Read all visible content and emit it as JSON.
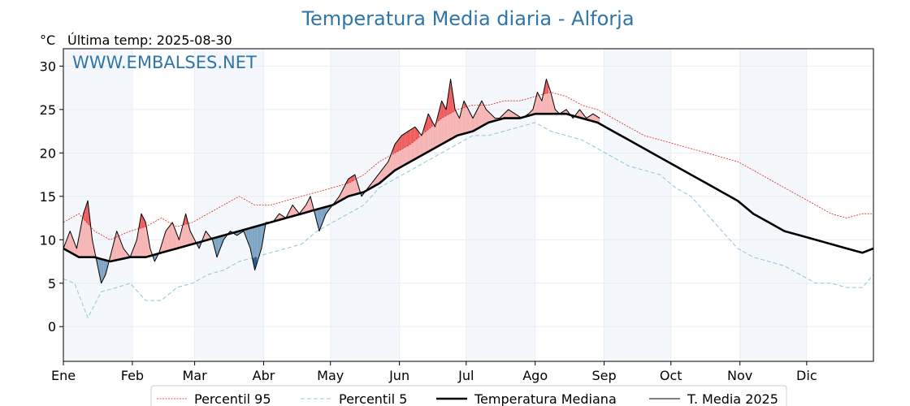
{
  "chart_data": {
    "type": "line",
    "title": "Temperatura Media diaria - Alforja",
    "unit": "°C",
    "last_temp_label": "Última temp: 2025-08-30",
    "watermark": "WWW.EMBALSES.NET",
    "x_ticks": [
      "Ene",
      "Feb",
      "Mar",
      "Abr",
      "May",
      "Jun",
      "Jul",
      "Ago",
      "Sep",
      "Oct",
      "Nov",
      "Dic"
    ],
    "y_ticks": [
      0,
      5,
      10,
      15,
      20,
      25,
      30
    ],
    "ylim": [
      -4,
      32
    ],
    "legend_placement": "bottom",
    "grid": true,
    "series": [
      {
        "name": "Percentil 95",
        "color": "#e02020",
        "points": [
          [
            1,
            12
          ],
          [
            8,
            13
          ],
          [
            15,
            11
          ],
          [
            22,
            10
          ],
          [
            31,
            11
          ],
          [
            38,
            11.5
          ],
          [
            45,
            12.5
          ],
          [
            52,
            11.5
          ],
          [
            59,
            12
          ],
          [
            66,
            13
          ],
          [
            73,
            14
          ],
          [
            80,
            15
          ],
          [
            87,
            14
          ],
          [
            94,
            14
          ],
          [
            101,
            14.5
          ],
          [
            108,
            15
          ],
          [
            115,
            15.5
          ],
          [
            122,
            16
          ],
          [
            129,
            16.5
          ],
          [
            136,
            17.5
          ],
          [
            143,
            19
          ],
          [
            150,
            20
          ],
          [
            157,
            21
          ],
          [
            164,
            22.5
          ],
          [
            171,
            24
          ],
          [
            178,
            25
          ],
          [
            185,
            25.5
          ],
          [
            192,
            25.5
          ],
          [
            199,
            26
          ],
          [
            206,
            26
          ],
          [
            213,
            26.5
          ],
          [
            220,
            27
          ],
          [
            227,
            26.5
          ],
          [
            234,
            25.5
          ],
          [
            241,
            25
          ],
          [
            248,
            24
          ],
          [
            255,
            23
          ],
          [
            262,
            22
          ],
          [
            269,
            21.5
          ],
          [
            276,
            21
          ],
          [
            283,
            20.5
          ],
          [
            290,
            20
          ],
          [
            297,
            19.5
          ],
          [
            304,
            19
          ],
          [
            311,
            18
          ],
          [
            318,
            17
          ],
          [
            325,
            16
          ],
          [
            332,
            15
          ],
          [
            339,
            14
          ],
          [
            346,
            13
          ],
          [
            353,
            12.5
          ],
          [
            360,
            13
          ],
          [
            365,
            13
          ]
        ]
      },
      {
        "name": "Percentil 5",
        "color": "#8cc4dc",
        "points": [
          [
            1,
            5.5
          ],
          [
            6,
            5
          ],
          [
            12,
            1
          ],
          [
            18,
            4
          ],
          [
            25,
            4.5
          ],
          [
            31,
            5
          ],
          [
            38,
            3
          ],
          [
            45,
            3
          ],
          [
            52,
            4.5
          ],
          [
            59,
            5
          ],
          [
            66,
            6
          ],
          [
            73,
            6.5
          ],
          [
            80,
            7.5
          ],
          [
            87,
            8
          ],
          [
            94,
            8.5
          ],
          [
            101,
            9
          ],
          [
            108,
            9.5
          ],
          [
            115,
            11
          ],
          [
            122,
            12
          ],
          [
            129,
            13
          ],
          [
            136,
            14
          ],
          [
            143,
            16
          ],
          [
            150,
            17
          ],
          [
            157,
            18
          ],
          [
            164,
            19
          ],
          [
            171,
            20
          ],
          [
            178,
            21
          ],
          [
            185,
            22
          ],
          [
            192,
            22
          ],
          [
            199,
            22.5
          ],
          [
            206,
            23
          ],
          [
            213,
            23.5
          ],
          [
            220,
            22.5
          ],
          [
            227,
            22
          ],
          [
            234,
            21.5
          ],
          [
            241,
            20.5
          ],
          [
            248,
            19.5
          ],
          [
            255,
            18.5
          ],
          [
            262,
            18
          ],
          [
            269,
            17.5
          ],
          [
            276,
            16
          ],
          [
            283,
            15
          ],
          [
            290,
            13
          ],
          [
            297,
            11
          ],
          [
            304,
            9
          ],
          [
            311,
            8
          ],
          [
            318,
            7.5
          ],
          [
            325,
            7
          ],
          [
            332,
            6
          ],
          [
            339,
            5
          ],
          [
            346,
            5
          ],
          [
            353,
            4.5
          ],
          [
            360,
            4.5
          ],
          [
            365,
            6
          ]
        ]
      },
      {
        "name": "Temperatura Mediana",
        "color": "#000000",
        "points": [
          [
            1,
            9
          ],
          [
            8,
            8
          ],
          [
            15,
            8
          ],
          [
            22,
            7.5
          ],
          [
            31,
            8
          ],
          [
            38,
            8
          ],
          [
            45,
            8.5
          ],
          [
            52,
            9
          ],
          [
            59,
            9.5
          ],
          [
            66,
            10
          ],
          [
            73,
            10.5
          ],
          [
            80,
            11
          ],
          [
            87,
            11.5
          ],
          [
            94,
            12
          ],
          [
            101,
            12.5
          ],
          [
            108,
            13
          ],
          [
            115,
            13.5
          ],
          [
            122,
            14
          ],
          [
            129,
            15
          ],
          [
            136,
            15.5
          ],
          [
            143,
            16.5
          ],
          [
            150,
            18
          ],
          [
            157,
            19
          ],
          [
            164,
            20
          ],
          [
            171,
            21
          ],
          [
            178,
            22
          ],
          [
            185,
            22.5
          ],
          [
            192,
            23.5
          ],
          [
            199,
            24
          ],
          [
            206,
            24
          ],
          [
            213,
            24.5
          ],
          [
            220,
            24.5
          ],
          [
            227,
            24.5
          ],
          [
            234,
            24
          ],
          [
            241,
            23.5
          ],
          [
            248,
            22.5
          ],
          [
            255,
            21.5
          ],
          [
            262,
            20.5
          ],
          [
            269,
            19.5
          ],
          [
            276,
            18.5
          ],
          [
            283,
            17.5
          ],
          [
            290,
            16.5
          ],
          [
            297,
            15.5
          ],
          [
            304,
            14.5
          ],
          [
            311,
            13
          ],
          [
            318,
            12
          ],
          [
            325,
            11
          ],
          [
            332,
            10.5
          ],
          [
            339,
            10
          ],
          [
            346,
            9.5
          ],
          [
            353,
            9
          ],
          [
            360,
            8.5
          ],
          [
            365,
            9
          ]
        ]
      },
      {
        "name": "T. Media 2025",
        "color": "#000000",
        "points": [
          [
            1,
            9
          ],
          [
            4,
            11
          ],
          [
            7,
            9
          ],
          [
            10,
            13
          ],
          [
            12,
            14.5
          ],
          [
            14,
            10
          ],
          [
            16,
            7.5
          ],
          [
            18,
            5
          ],
          [
            20,
            6
          ],
          [
            22,
            8
          ],
          [
            25,
            11
          ],
          [
            28,
            9
          ],
          [
            31,
            8
          ],
          [
            34,
            10
          ],
          [
            36,
            13
          ],
          [
            38,
            12
          ],
          [
            40,
            9
          ],
          [
            42,
            7.5
          ],
          [
            44,
            8.5
          ],
          [
            47,
            11
          ],
          [
            50,
            12
          ],
          [
            53,
            10
          ],
          [
            56,
            13
          ],
          [
            58,
            11
          ],
          [
            60,
            10
          ],
          [
            62,
            9
          ],
          [
            65,
            11
          ],
          [
            68,
            10
          ],
          [
            70,
            8
          ],
          [
            73,
            10
          ],
          [
            76,
            11
          ],
          [
            79,
            10.5
          ],
          [
            82,
            11
          ],
          [
            85,
            9
          ],
          [
            87,
            6.5
          ],
          [
            90,
            9
          ],
          [
            92,
            12
          ],
          [
            95,
            12
          ],
          [
            98,
            13
          ],
          [
            101,
            12.5
          ],
          [
            104,
            14
          ],
          [
            107,
            13
          ],
          [
            110,
            14
          ],
          [
            112,
            15
          ],
          [
            114,
            13
          ],
          [
            116,
            11
          ],
          [
            119,
            13
          ],
          [
            122,
            14
          ],
          [
            125,
            15
          ],
          [
            127,
            16
          ],
          [
            129,
            17
          ],
          [
            132,
            17.5
          ],
          [
            135,
            15
          ],
          [
            138,
            16
          ],
          [
            141,
            17
          ],
          [
            144,
            18
          ],
          [
            147,
            19
          ],
          [
            150,
            21
          ],
          [
            153,
            22
          ],
          [
            156,
            22.5
          ],
          [
            159,
            23
          ],
          [
            162,
            22
          ],
          [
            165,
            24.5
          ],
          [
            168,
            23
          ],
          [
            171,
            26
          ],
          [
            173,
            25
          ],
          [
            175,
            28.5
          ],
          [
            177,
            25
          ],
          [
            179,
            24
          ],
          [
            181,
            26
          ],
          [
            183,
            25
          ],
          [
            185,
            24
          ],
          [
            187,
            25
          ],
          [
            189,
            26
          ],
          [
            191,
            25
          ],
          [
            193,
            24.5
          ],
          [
            195,
            24
          ],
          [
            197,
            24
          ],
          [
            199,
            24.5
          ],
          [
            201,
            25
          ],
          [
            204,
            24.5
          ],
          [
            207,
            24
          ],
          [
            210,
            24.5
          ],
          [
            212,
            25
          ],
          [
            214,
            27
          ],
          [
            216,
            26
          ],
          [
            218,
            28.5
          ],
          [
            220,
            27
          ],
          [
            222,
            25
          ],
          [
            224,
            24.5
          ],
          [
            227,
            25
          ],
          [
            230,
            24
          ],
          [
            233,
            25
          ],
          [
            236,
            24
          ],
          [
            239,
            24.5
          ],
          [
            242,
            24
          ]
        ]
      }
    ]
  },
  "legend": {
    "p95": "Percentil 95",
    "p5": "Percentil 5",
    "median": "Temperatura Mediana",
    "current": "T. Media 2025"
  }
}
